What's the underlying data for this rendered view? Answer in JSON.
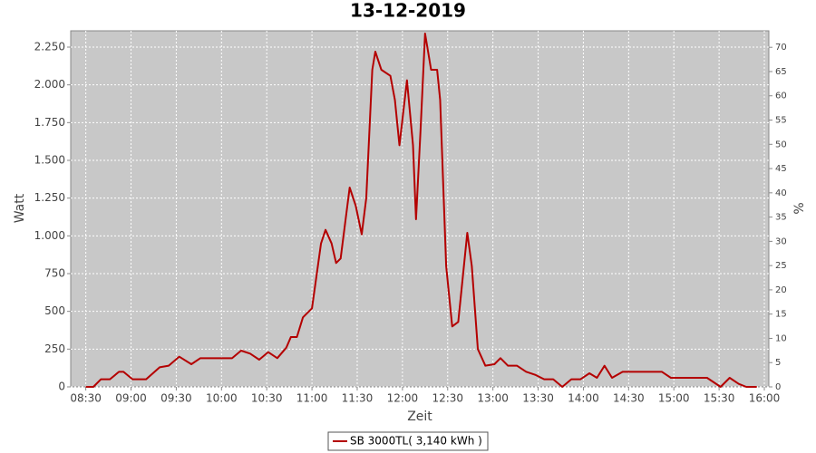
{
  "chart_data": {
    "type": "line",
    "title": "13-12-2019",
    "xlabel": "Zeit",
    "ylabel": "Watt",
    "y2label": "%",
    "x": [
      "08:30",
      "08:35",
      "08:40",
      "08:46",
      "08:52",
      "08:55",
      "09:01",
      "09:10",
      "09:19",
      "09:25",
      "09:32",
      "09:40",
      "09:46",
      "09:58",
      "10:07",
      "10:13",
      "10:19",
      "10:25",
      "10:31",
      "10:37",
      "10:43",
      "10:46",
      "10:50",
      "10:54",
      "11:00",
      "11:06",
      "11:09",
      "11:13",
      "11:16",
      "11:19",
      "11:25",
      "11:29",
      "11:33",
      "11:36",
      "11:40",
      "11:42",
      "11:46",
      "11:52",
      "11:55",
      "11:58",
      "12:03",
      "12:07",
      "12:09",
      "12:12",
      "12:15",
      "12:19",
      "12:23",
      "12:25",
      "12:29",
      "12:33",
      "12:37",
      "12:43",
      "12:46",
      "12:50",
      "12:55",
      "13:01",
      "13:05",
      "13:10",
      "13:16",
      "13:22",
      "13:28",
      "13:34",
      "13:40",
      "13:46",
      "13:52",
      "13:58",
      "14:04",
      "14:09",
      "14:14",
      "14:19",
      "14:26",
      "14:34",
      "14:52",
      "14:58",
      "15:22",
      "15:31",
      "15:37",
      "15:43",
      "15:48",
      "15:55"
    ],
    "series": [
      {
        "name": "SB 3000TL( 3,140 kWh )",
        "color": "#b40000",
        "values": [
          0,
          0,
          50,
          50,
          100,
          100,
          50,
          50,
          130,
          140,
          200,
          150,
          190,
          190,
          190,
          240,
          220,
          180,
          230,
          190,
          260,
          330,
          330,
          460,
          520,
          950,
          1040,
          950,
          820,
          850,
          1320,
          1200,
          1010,
          1250,
          2100,
          2220,
          2100,
          2060,
          1900,
          1600,
          2030,
          1600,
          1110,
          1700,
          2340,
          2100,
          2100,
          1900,
          800,
          400,
          430,
          1020,
          800,
          250,
          140,
          150,
          190,
          140,
          140,
          100,
          80,
          50,
          50,
          0,
          50,
          50,
          90,
          60,
          140,
          60,
          100,
          100,
          100,
          60,
          60,
          0,
          60,
          20,
          0,
          0
        ]
      }
    ],
    "xlim": [
      "08:20",
      "16:03"
    ],
    "xticks": [
      "08:30",
      "09:00",
      "09:30",
      "10:00",
      "10:30",
      "11:00",
      "11:30",
      "12:00",
      "12:30",
      "13:00",
      "13:30",
      "14:00",
      "14:30",
      "15:00",
      "15:30",
      "16:00"
    ],
    "ylim": [
      0,
      2358
    ],
    "yticks": [
      0,
      250,
      500,
      750,
      {
        "value": 1000,
        "label": "1.000"
      },
      {
        "value": 1250,
        "label": "1.250"
      },
      {
        "value": 1500,
        "label": "1.500"
      },
      {
        "value": 1750,
        "label": "1.750"
      },
      {
        "value": 2000,
        "label": "2.000"
      },
      {
        "value": 2250,
        "label": "2.250"
      }
    ],
    "y2lim": [
      0,
      73.4
    ],
    "y2ticks": [
      0,
      5,
      10,
      15,
      20,
      25,
      30,
      35,
      40,
      45,
      50,
      55,
      60,
      65,
      70
    ],
    "grid": true
  }
}
